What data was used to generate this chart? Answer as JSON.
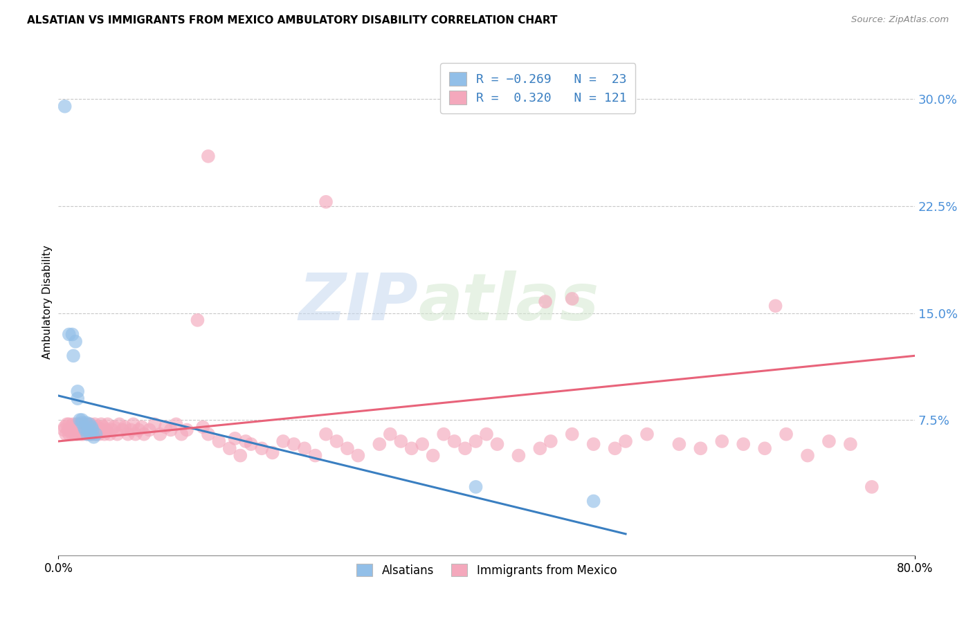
{
  "title": "ALSATIAN VS IMMIGRANTS FROM MEXICO AMBULATORY DISABILITY CORRELATION CHART",
  "source": "Source: ZipAtlas.com",
  "ylabel": "Ambulatory Disability",
  "xlim": [
    0.0,
    0.8
  ],
  "ylim": [
    -0.02,
    0.335
  ],
  "ytick_vals": [
    0.075,
    0.15,
    0.225,
    0.3
  ],
  "ytick_labels": [
    "7.5%",
    "15.0%",
    "22.5%",
    "30.0%"
  ],
  "blue_color": "#92bfe8",
  "pink_color": "#f4a8bc",
  "blue_line_color": "#3a7fc1",
  "pink_line_color": "#e8637a",
  "watermark_zip": "ZIP",
  "watermark_atlas": "atlas",
  "alsatians_x": [
    0.006,
    0.01,
    0.013,
    0.014,
    0.016,
    0.018,
    0.018,
    0.02,
    0.022,
    0.022,
    0.024,
    0.025,
    0.026,
    0.027,
    0.028,
    0.029,
    0.03,
    0.031,
    0.032,
    0.033,
    0.035,
    0.39,
    0.5
  ],
  "alsatians_y": [
    0.295,
    0.135,
    0.135,
    0.12,
    0.13,
    0.095,
    0.09,
    0.075,
    0.075,
    0.073,
    0.07,
    0.068,
    0.073,
    0.065,
    0.068,
    0.072,
    0.065,
    0.07,
    0.068,
    0.063,
    0.065,
    0.028,
    0.018
  ],
  "mexico_x": [
    0.005,
    0.006,
    0.007,
    0.008,
    0.009,
    0.01,
    0.01,
    0.011,
    0.012,
    0.013,
    0.014,
    0.015,
    0.016,
    0.016,
    0.017,
    0.018,
    0.018,
    0.019,
    0.02,
    0.02,
    0.021,
    0.022,
    0.022,
    0.023,
    0.024,
    0.025,
    0.026,
    0.027,
    0.028,
    0.029,
    0.03,
    0.03,
    0.031,
    0.032,
    0.033,
    0.034,
    0.035,
    0.036,
    0.037,
    0.038,
    0.04,
    0.04,
    0.042,
    0.043,
    0.045,
    0.046,
    0.048,
    0.05,
    0.052,
    0.055,
    0.057,
    0.06,
    0.062,
    0.065,
    0.068,
    0.07,
    0.072,
    0.075,
    0.078,
    0.08,
    0.085,
    0.09,
    0.095,
    0.1,
    0.105,
    0.11,
    0.115,
    0.12,
    0.13,
    0.135,
    0.14,
    0.15,
    0.16,
    0.165,
    0.17,
    0.175,
    0.18,
    0.19,
    0.2,
    0.21,
    0.22,
    0.23,
    0.24,
    0.25,
    0.26,
    0.27,
    0.28,
    0.3,
    0.31,
    0.32,
    0.33,
    0.34,
    0.35,
    0.36,
    0.37,
    0.38,
    0.39,
    0.4,
    0.41,
    0.43,
    0.45,
    0.46,
    0.48,
    0.5,
    0.52,
    0.53,
    0.55,
    0.58,
    0.6,
    0.62,
    0.64,
    0.66,
    0.68,
    0.7,
    0.72,
    0.74,
    0.76,
    0.67,
    0.455,
    0.48,
    0.14,
    0.25
  ],
  "mexico_y": [
    0.068,
    0.07,
    0.065,
    0.072,
    0.068,
    0.065,
    0.072,
    0.068,
    0.07,
    0.065,
    0.072,
    0.068,
    0.07,
    0.065,
    0.072,
    0.068,
    0.065,
    0.072,
    0.068,
    0.07,
    0.065,
    0.072,
    0.068,
    0.065,
    0.07,
    0.068,
    0.072,
    0.065,
    0.068,
    0.07,
    0.065,
    0.072,
    0.068,
    0.065,
    0.07,
    0.072,
    0.065,
    0.068,
    0.07,
    0.065,
    0.072,
    0.068,
    0.07,
    0.065,
    0.068,
    0.072,
    0.065,
    0.068,
    0.07,
    0.065,
    0.072,
    0.068,
    0.07,
    0.065,
    0.068,
    0.072,
    0.065,
    0.068,
    0.07,
    0.065,
    0.068,
    0.072,
    0.065,
    0.07,
    0.068,
    0.072,
    0.065,
    0.068,
    0.145,
    0.07,
    0.065,
    0.06,
    0.055,
    0.062,
    0.05,
    0.06,
    0.058,
    0.055,
    0.052,
    0.06,
    0.058,
    0.055,
    0.05,
    0.065,
    0.06,
    0.055,
    0.05,
    0.058,
    0.065,
    0.06,
    0.055,
    0.058,
    0.05,
    0.065,
    0.06,
    0.055,
    0.06,
    0.065,
    0.058,
    0.05,
    0.055,
    0.06,
    0.065,
    0.058,
    0.055,
    0.06,
    0.065,
    0.058,
    0.055,
    0.06,
    0.058,
    0.055,
    0.065,
    0.05,
    0.06,
    0.058,
    0.028,
    0.155,
    0.158,
    0.16,
    0.26,
    0.228
  ]
}
